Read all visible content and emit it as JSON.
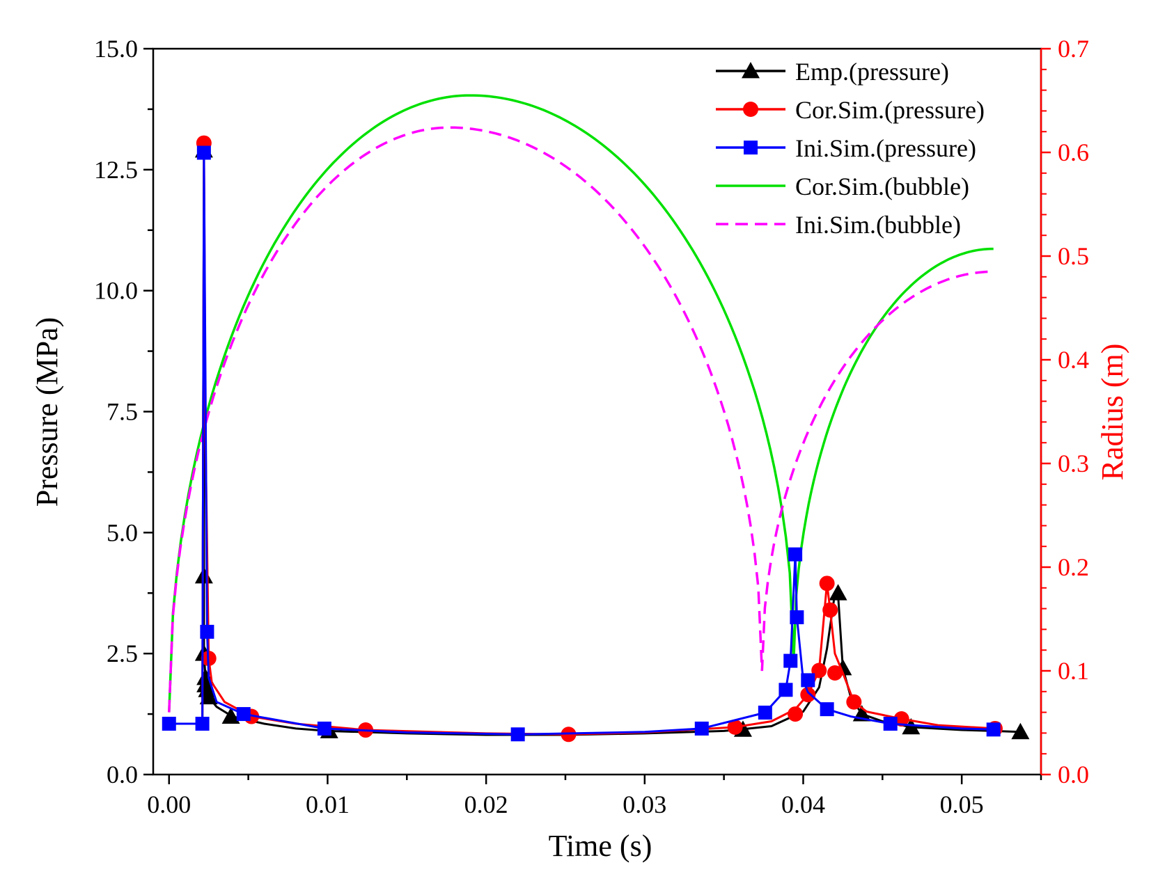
{
  "chart_data": {
    "type": "line",
    "xlabel": "Time (s)",
    "ylabel_left": "Pressure (MPa)",
    "ylabel_right": "Radius (m)",
    "xlim": [
      -0.001,
      0.055
    ],
    "ylim_left": [
      0,
      15
    ],
    "ylim_right": [
      0,
      0.7
    ],
    "x_ticks": [
      "0.00",
      "0.01",
      "0.02",
      "0.03",
      "0.04",
      "0.05"
    ],
    "y_left_ticks": [
      "0.0",
      "2.5",
      "5.0",
      "7.5",
      "10.0",
      "12.5",
      "15.0"
    ],
    "y_right_ticks": [
      "0.0",
      "0.1",
      "0.2",
      "0.3",
      "0.4",
      "0.5",
      "0.6",
      "0.7"
    ],
    "colors": {
      "emp": "#000000",
      "cor_pressure": "#ff0000",
      "ini_pressure": "#0000ff",
      "cor_bubble": "#00e000",
      "ini_bubble": "#ff00ff",
      "right_axis": "#ff0000"
    },
    "legend": [
      {
        "key": "emp",
        "label": "Emp.(pressure)",
        "marker": "triangle",
        "dash": false
      },
      {
        "key": "cor_pressure",
        "label": "Cor.Sim.(pressure)",
        "marker": "circle",
        "dash": false
      },
      {
        "key": "ini_pressure",
        "label": "Ini.Sim.(pressure)",
        "marker": "square",
        "dash": false
      },
      {
        "key": "cor_bubble",
        "label": "Cor.Sim.(bubble)",
        "marker": "none",
        "dash": false
      },
      {
        "key": "ini_bubble",
        "label": "Ini.Sim.(bubble)",
        "marker": "none",
        "dash": true
      }
    ],
    "series": [
      {
        "key": "emp",
        "name": "Emp.(pressure)",
        "axis": "left",
        "x": [
          0,
          0.0021,
          0.0022,
          0.0022,
          0.0022,
          0.0023,
          0.0023,
          0.0024,
          0.0025,
          0.003,
          0.004,
          0.006,
          0.008,
          0.01,
          0.015,
          0.02,
          0.025,
          0.03,
          0.035,
          0.036,
          0.038,
          0.04,
          0.041,
          0.0415,
          0.042,
          0.0422,
          0.0425,
          0.043,
          0.0437,
          0.045,
          0.0468,
          0.05,
          0.052,
          0.0537
        ],
        "y": [
          1.05,
          1.05,
          12.9,
          4.1,
          2.5,
          2.0,
          1.85,
          1.75,
          1.6,
          1.4,
          1.2,
          1.05,
          0.95,
          0.9,
          0.85,
          0.82,
          0.82,
          0.85,
          0.9,
          0.93,
          1.0,
          1.3,
          1.8,
          2.6,
          3.75,
          3.7,
          2.2,
          1.6,
          1.25,
          1.1,
          0.98,
          0.92,
          0.9,
          0.88
        ],
        "markers_x": [
          0.0022,
          0.0022,
          0.0022,
          0.0023,
          0.0023,
          0.0024,
          0.0025,
          0.0039,
          0.0101,
          0.0362,
          0.0422,
          0.0425,
          0.0437,
          0.0468,
          0.0537
        ],
        "markers_y": [
          12.9,
          4.1,
          2.5,
          2.0,
          1.85,
          1.75,
          1.6,
          1.2,
          0.9,
          0.93,
          3.75,
          2.2,
          1.25,
          0.98,
          0.88
        ]
      },
      {
        "key": "cor_pressure",
        "name": "Cor.Sim.(pressure)",
        "axis": "left",
        "x": [
          0,
          0.0021,
          0.0022,
          0.0023,
          0.0025,
          0.0027,
          0.0035,
          0.0052,
          0.008,
          0.0124,
          0.02,
          0.0252,
          0.03,
          0.0357,
          0.038,
          0.0389,
          0.0395,
          0.0403,
          0.041,
          0.0415,
          0.0417,
          0.042,
          0.0425,
          0.0432,
          0.044,
          0.0462,
          0.0485,
          0.0521
        ],
        "y": [
          1.05,
          1.05,
          13.05,
          7.0,
          2.4,
          1.9,
          1.5,
          1.2,
          1.05,
          0.92,
          0.85,
          0.83,
          0.87,
          0.98,
          1.1,
          1.25,
          1.35,
          1.65,
          2.15,
          3.95,
          3.4,
          2.5,
          2.1,
          1.5,
          1.3,
          1.15,
          1.02,
          0.95
        ],
        "markers_x": [
          0.0022,
          0.0025,
          0.0052,
          0.0124,
          0.0252,
          0.0357,
          0.0395,
          0.0403,
          0.041,
          0.0415,
          0.0417,
          0.042,
          0.0432,
          0.0462,
          0.0521
        ],
        "markers_y": [
          13.05,
          2.4,
          1.2,
          0.92,
          0.83,
          0.98,
          1.25,
          1.65,
          2.15,
          3.95,
          3.4,
          2.1,
          1.5,
          1.15,
          0.95
        ]
      },
      {
        "key": "ini_pressure",
        "name": "Ini.Sim.(pressure)",
        "axis": "left",
        "x": [
          0,
          0.0021,
          0.0021,
          0.0022,
          0.0024,
          0.0025,
          0.003,
          0.0047,
          0.0098,
          0.015,
          0.022,
          0.03,
          0.0336,
          0.0376,
          0.0389,
          0.0392,
          0.0395,
          0.0396,
          0.04,
          0.0403,
          0.0415,
          0.043,
          0.0455,
          0.05,
          0.052
        ],
        "y": [
          1.05,
          1.05,
          1.05,
          12.85,
          2.95,
          2.0,
          1.5,
          1.25,
          0.95,
          0.87,
          0.83,
          0.88,
          0.95,
          1.28,
          1.75,
          2.35,
          4.55,
          3.25,
          1.95,
          1.7,
          1.35,
          1.2,
          1.05,
          0.95,
          0.93
        ],
        "markers_x": [
          0,
          0.0021,
          0.0022,
          0.0024,
          0.0047,
          0.0098,
          0.022,
          0.0336,
          0.0376,
          0.0389,
          0.0392,
          0.0395,
          0.0396,
          0.0403,
          0.0415,
          0.0455,
          0.052
        ],
        "markers_y": [
          1.05,
          1.05,
          12.85,
          2.95,
          1.25,
          0.95,
          0.83,
          0.95,
          1.28,
          1.75,
          2.35,
          4.55,
          3.25,
          1.95,
          1.35,
          1.05,
          0.93
        ]
      },
      {
        "key": "cor_bubble",
        "name": "Cor.Sim.(bubble)",
        "axis": "right",
        "cycle1": {
          "start": 0,
          "end": 0.0394,
          "peak_time": 0.019,
          "r_start": 0.06,
          "r_peak": 0.655,
          "r_end": 0.11
        },
        "cycle2": {
          "start": 0.0394,
          "end": 0.052,
          "r_start": 0.11,
          "r_end": 0.507
        }
      },
      {
        "key": "ini_bubble",
        "name": "Ini.Sim.(bubble)",
        "axis": "right",
        "cycle1": {
          "start": 0,
          "end": 0.0374,
          "peak_time": 0.0177,
          "r_start": 0.06,
          "r_peak": 0.624,
          "r_end": 0.1
        },
        "cycle2": {
          "start": 0.0374,
          "end": 0.052,
          "r_start": 0.1,
          "r_end": 0.485
        }
      }
    ]
  }
}
